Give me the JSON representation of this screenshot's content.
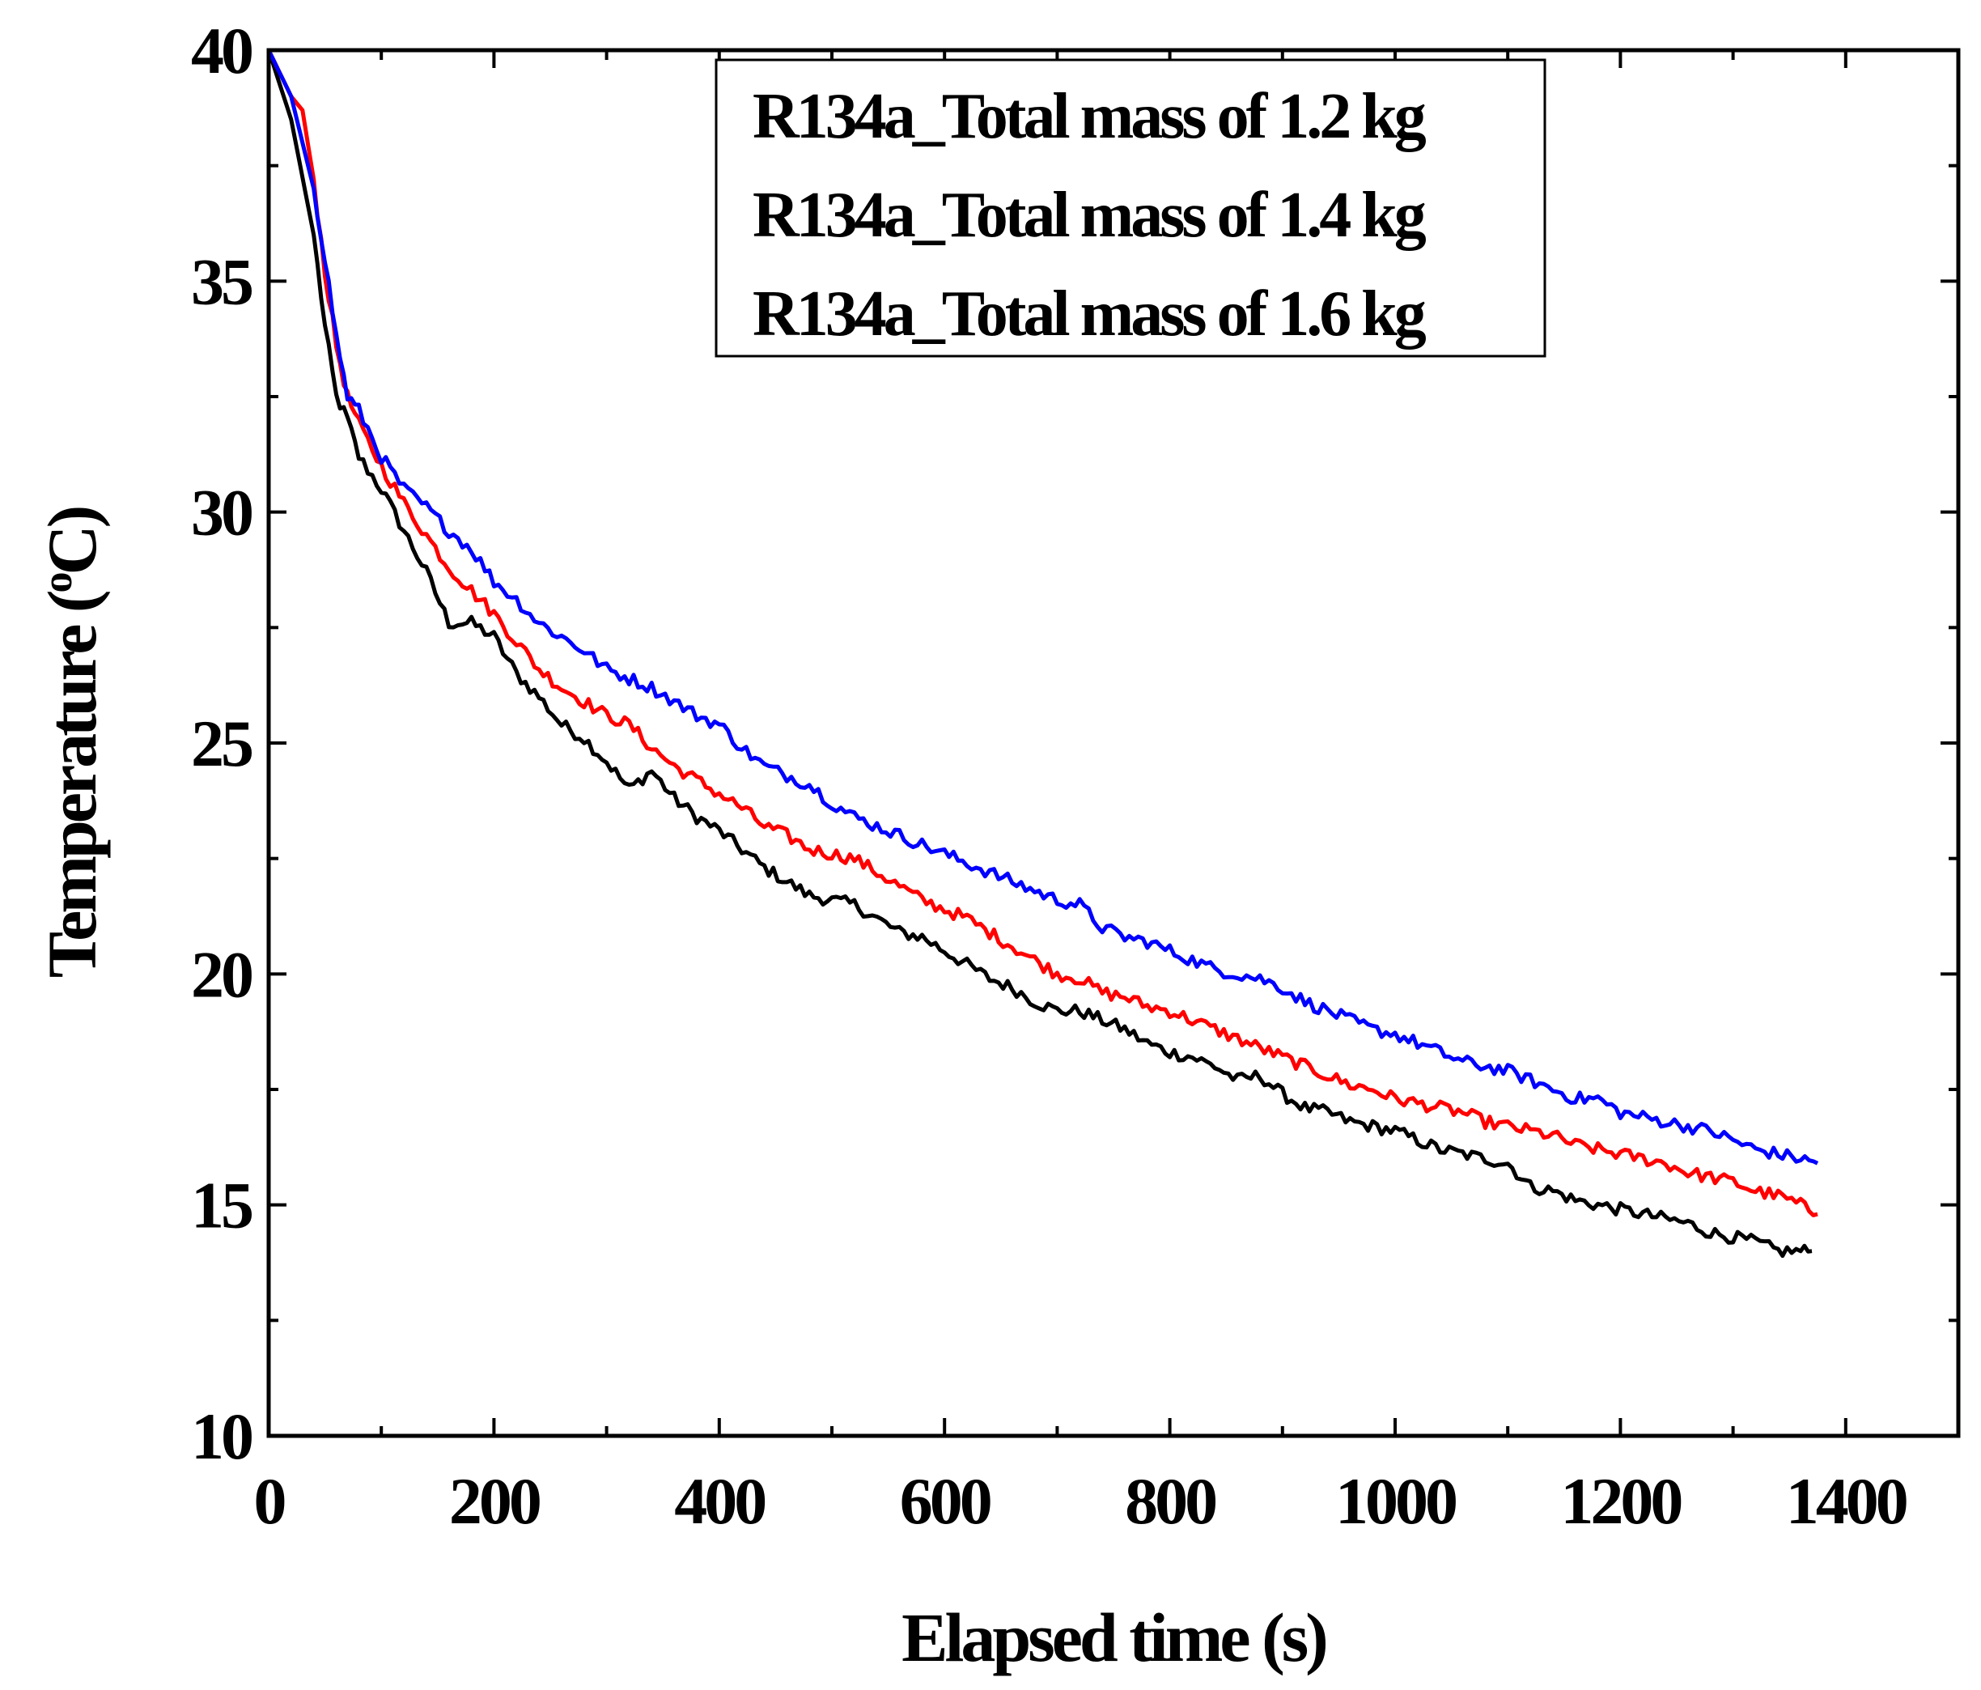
{
  "chart_data": {
    "type": "line",
    "title": "",
    "xlabel": "Elapsed time (s)",
    "ylabel_prefix": "Temperature (",
    "ylabel_sup": "o",
    "ylabel_suffix": "C)",
    "xlim": [
      0,
      1500
    ],
    "ylim": [
      10,
      40
    ],
    "x_ticks": [
      0,
      200,
      400,
      600,
      800,
      1000,
      1200,
      1400
    ],
    "x_tick_labels": [
      "0",
      "200",
      "400",
      "600",
      "800",
      "1000",
      "1200",
      "1400"
    ],
    "y_ticks": [
      10,
      15,
      20,
      25,
      30,
      35,
      40
    ],
    "y_tick_labels": [
      "10",
      "15",
      "20",
      "25",
      "30",
      "35",
      "40"
    ],
    "x_minor_step": 100,
    "y_minor_step": 2.5,
    "legend_position": "top-center",
    "series": [
      {
        "name": "R134a_Total mass of 1.2 kg",
        "color": "#000000",
        "points": [
          [
            0,
            40
          ],
          [
            20,
            38.5
          ],
          [
            40,
            36
          ],
          [
            50,
            34
          ],
          [
            60,
            32.5
          ],
          [
            70,
            32
          ],
          [
            80,
            31.2
          ],
          [
            100,
            30.5
          ],
          [
            120,
            29.6
          ],
          [
            140,
            28.7
          ],
          [
            160,
            27.6
          ],
          [
            180,
            27.6
          ],
          [
            200,
            27.3
          ],
          [
            220,
            26.5
          ],
          [
            240,
            26.0
          ],
          [
            260,
            25.4
          ],
          [
            280,
            25.1
          ],
          [
            300,
            24.6
          ],
          [
            320,
            24.0
          ],
          [
            340,
            24.4
          ],
          [
            360,
            23.8
          ],
          [
            380,
            23.4
          ],
          [
            400,
            23.1
          ],
          [
            420,
            22.7
          ],
          [
            440,
            22.3
          ],
          [
            460,
            22.0
          ],
          [
            480,
            21.7
          ],
          [
            500,
            21.6
          ],
          [
            520,
            21.5
          ],
          [
            540,
            21.2
          ],
          [
            560,
            20.9
          ],
          [
            580,
            20.8
          ],
          [
            600,
            20.5
          ],
          [
            620,
            20.2
          ],
          [
            640,
            19.9
          ],
          [
            660,
            19.7
          ],
          [
            680,
            19.4
          ],
          [
            700,
            19.2
          ],
          [
            720,
            19.2
          ],
          [
            740,
            19.0
          ],
          [
            760,
            18.8
          ],
          [
            780,
            18.5
          ],
          [
            800,
            18.3
          ],
          [
            820,
            18.2
          ],
          [
            840,
            18.0
          ],
          [
            860,
            17.7
          ],
          [
            880,
            17.8
          ],
          [
            900,
            17.4
          ],
          [
            920,
            17.1
          ],
          [
            940,
            17.0
          ],
          [
            960,
            16.8
          ],
          [
            980,
            16.7
          ],
          [
            1000,
            16.6
          ],
          [
            1020,
            16.4
          ],
          [
            1040,
            16.2
          ],
          [
            1060,
            16.1
          ],
          [
            1080,
            16.0
          ],
          [
            1100,
            15.9
          ],
          [
            1120,
            15.4
          ],
          [
            1140,
            15.3
          ],
          [
            1160,
            15.1
          ],
          [
            1180,
            15.0
          ],
          [
            1200,
            14.9
          ],
          [
            1220,
            14.8
          ],
          [
            1240,
            14.7
          ],
          [
            1260,
            14.6
          ],
          [
            1280,
            14.4
          ],
          [
            1300,
            14.3
          ],
          [
            1320,
            14.2
          ],
          [
            1340,
            14.0
          ],
          [
            1360,
            14.0
          ],
          [
            1370,
            14.0
          ]
        ]
      },
      {
        "name": "R134a_Total mass of 1.4 kg",
        "color": "#ff0000",
        "points": [
          [
            0,
            40
          ],
          [
            20,
            39
          ],
          [
            30,
            38.7
          ],
          [
            40,
            37.2
          ],
          [
            50,
            35.2
          ],
          [
            60,
            33.6
          ],
          [
            70,
            32.5
          ],
          [
            80,
            31.9
          ],
          [
            100,
            31.0
          ],
          [
            120,
            30.2
          ],
          [
            140,
            29.5
          ],
          [
            160,
            28.8
          ],
          [
            180,
            28.3
          ],
          [
            200,
            27.8
          ],
          [
            220,
            27.2
          ],
          [
            240,
            26.6
          ],
          [
            260,
            26.2
          ],
          [
            280,
            25.9
          ],
          [
            300,
            25.6
          ],
          [
            320,
            25.4
          ],
          [
            340,
            24.9
          ],
          [
            360,
            24.5
          ],
          [
            380,
            24.2
          ],
          [
            400,
            23.9
          ],
          [
            420,
            23.6
          ],
          [
            440,
            23.2
          ],
          [
            460,
            23.0
          ],
          [
            480,
            22.7
          ],
          [
            500,
            22.6
          ],
          [
            520,
            22.5
          ],
          [
            540,
            22.2
          ],
          [
            560,
            21.9
          ],
          [
            580,
            21.6
          ],
          [
            600,
            21.4
          ],
          [
            620,
            21.2
          ],
          [
            640,
            20.9
          ],
          [
            660,
            20.6
          ],
          [
            680,
            20.3
          ],
          [
            700,
            20.0
          ],
          [
            720,
            19.9
          ],
          [
            740,
            19.6
          ],
          [
            760,
            19.5
          ],
          [
            780,
            19.3
          ],
          [
            800,
            19.2
          ],
          [
            820,
            19.0
          ],
          [
            840,
            18.8
          ],
          [
            860,
            18.6
          ],
          [
            880,
            18.4
          ],
          [
            900,
            18.2
          ],
          [
            920,
            18.0
          ],
          [
            940,
            17.8
          ],
          [
            960,
            17.6
          ],
          [
            980,
            17.5
          ],
          [
            1000,
            17.3
          ],
          [
            1020,
            17.2
          ],
          [
            1040,
            17.1
          ],
          [
            1060,
            17.0
          ],
          [
            1080,
            16.8
          ],
          [
            1100,
            16.7
          ],
          [
            1120,
            16.6
          ],
          [
            1140,
            16.5
          ],
          [
            1160,
            16.3
          ],
          [
            1180,
            16.2
          ],
          [
            1200,
            16.1
          ],
          [
            1220,
            16.0
          ],
          [
            1240,
            15.9
          ],
          [
            1260,
            15.7
          ],
          [
            1280,
            15.6
          ],
          [
            1300,
            15.5
          ],
          [
            1320,
            15.3
          ],
          [
            1340,
            15.2
          ],
          [
            1360,
            15.0
          ],
          [
            1375,
            14.8
          ]
        ]
      },
      {
        "name": "R134a_Total mass of 1.6 kg",
        "color": "#0000ff",
        "points": [
          [
            0,
            40
          ],
          [
            20,
            39
          ],
          [
            40,
            37
          ],
          [
            50,
            35.5
          ],
          [
            60,
            33.8
          ],
          [
            70,
            32.5
          ],
          [
            80,
            32.2
          ],
          [
            100,
            31.2
          ],
          [
            120,
            30.5
          ],
          [
            140,
            30.1
          ],
          [
            160,
            29.6
          ],
          [
            180,
            29.2
          ],
          [
            200,
            28.5
          ],
          [
            220,
            28.1
          ],
          [
            240,
            27.6
          ],
          [
            260,
            27.3
          ],
          [
            280,
            27.0
          ],
          [
            300,
            26.6
          ],
          [
            320,
            26.4
          ],
          [
            340,
            26.2
          ],
          [
            360,
            25.9
          ],
          [
            380,
            25.6
          ],
          [
            400,
            25.4
          ],
          [
            420,
            24.9
          ],
          [
            440,
            24.5
          ],
          [
            460,
            24.3
          ],
          [
            480,
            24.1
          ],
          [
            500,
            23.7
          ],
          [
            520,
            23.4
          ],
          [
            540,
            23.2
          ],
          [
            560,
            23.0
          ],
          [
            580,
            22.8
          ],
          [
            600,
            22.6
          ],
          [
            620,
            22.4
          ],
          [
            640,
            22.2
          ],
          [
            660,
            22.0
          ],
          [
            680,
            21.8
          ],
          [
            700,
            21.6
          ],
          [
            720,
            21.5
          ],
          [
            740,
            21.0
          ],
          [
            760,
            20.8
          ],
          [
            780,
            20.7
          ],
          [
            800,
            20.5
          ],
          [
            820,
            20.3
          ],
          [
            840,
            20.1
          ],
          [
            860,
            20.0
          ],
          [
            880,
            19.9
          ],
          [
            900,
            19.7
          ],
          [
            920,
            19.4
          ],
          [
            940,
            19.2
          ],
          [
            960,
            19.0
          ],
          [
            980,
            18.8
          ],
          [
            1000,
            18.7
          ],
          [
            1020,
            18.5
          ],
          [
            1040,
            18.3
          ],
          [
            1060,
            18.1
          ],
          [
            1080,
            18.0
          ],
          [
            1100,
            17.9
          ],
          [
            1120,
            17.7
          ],
          [
            1140,
            17.5
          ],
          [
            1160,
            17.3
          ],
          [
            1180,
            17.3
          ],
          [
            1200,
            17.0
          ],
          [
            1220,
            16.9
          ],
          [
            1240,
            16.8
          ],
          [
            1260,
            16.7
          ],
          [
            1280,
            16.6
          ],
          [
            1300,
            16.4
          ],
          [
            1320,
            16.2
          ],
          [
            1340,
            16.1
          ],
          [
            1360,
            16.0
          ],
          [
            1375,
            15.9
          ]
        ]
      }
    ]
  }
}
